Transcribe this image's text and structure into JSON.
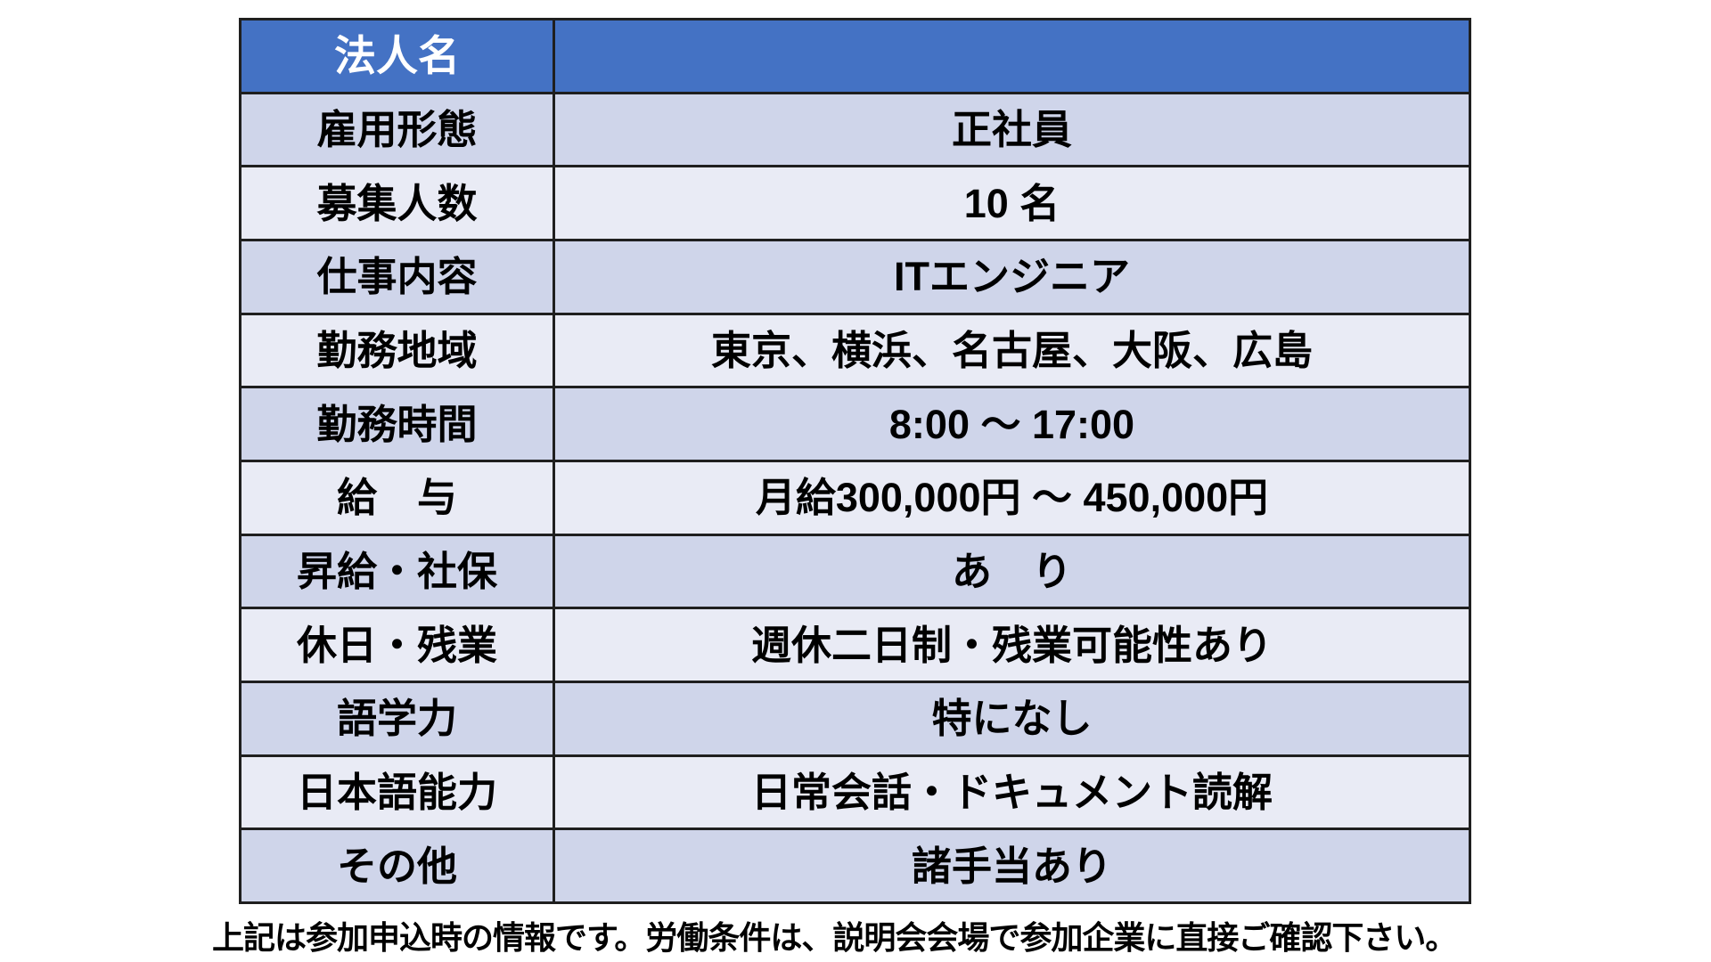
{
  "table": {
    "header": {
      "label": "法人名",
      "value": ""
    },
    "rows": [
      {
        "label": "雇用形態",
        "value": "正社員"
      },
      {
        "label": "募集人数",
        "value": "10 名"
      },
      {
        "label": "仕事内容",
        "value": "ITエンジニア"
      },
      {
        "label": "勤務地域",
        "value": "東京、横浜、名古屋、大阪、広島"
      },
      {
        "label": "勤務時間",
        "value": "8:00 ～ 17:00"
      },
      {
        "label": "給　与",
        "value": "月給300,000円 ～ 450,000円"
      },
      {
        "label": "昇給・社保",
        "value": "あ　り"
      },
      {
        "label": "休日・残業",
        "value": "週休二日制・残業可能性あり"
      },
      {
        "label": "語学力",
        "value": "特になし"
      },
      {
        "label": "日本語能力",
        "value": "日常会話・ドキュメント読解"
      },
      {
        "label": "その他",
        "value": "諸手当あり"
      }
    ]
  },
  "footer": {
    "note": "上記は参加申込時の情報です。労働条件は、説明会会場で参加企業に直接ご確認下さい。"
  },
  "colors": {
    "header_bg": "#4472C4",
    "header_text": "#FFFFFF",
    "band_dark": "#CFD5EA",
    "band_light": "#E9EBF5",
    "border": "#1F1F1F",
    "text": "#000000",
    "page_bg": "#FFFFFF"
  }
}
